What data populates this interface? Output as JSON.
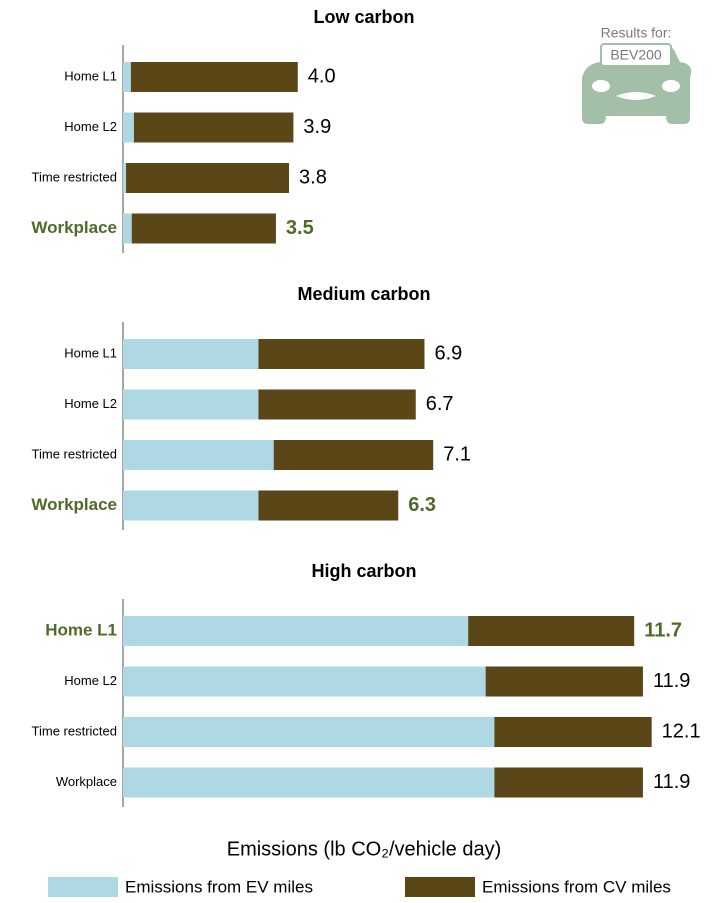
{
  "chart_data": [
    {
      "type": "bar",
      "orientation": "horizontal",
      "stacked": true,
      "title": "Low carbon",
      "categories": [
        "Home L1",
        "Home L2",
        "Time restricted",
        "Workplace"
      ],
      "series": [
        {
          "name": "Emissions from EV miles",
          "color": "#add8e4",
          "values": [
            0.18,
            0.25,
            0.07,
            0.2
          ]
        },
        {
          "name": "Emissions from CV miles",
          "color": "#5a4616",
          "values": [
            3.82,
            3.65,
            3.73,
            3.3
          ]
        }
      ],
      "totals": [
        4,
        3.9,
        3.8,
        3.5
      ],
      "value_labels": [
        "4.0",
        "3.9",
        "3.8",
        "3.5"
      ],
      "highlight": 3,
      "highlight_color": "#4e6b2a",
      "xlim": [
        0,
        13
      ]
    },
    {
      "type": "bar",
      "orientation": "horizontal",
      "stacked": true,
      "title": "Medium carbon",
      "categories": [
        "Home L1",
        "Home L2",
        "Time restricted",
        "Workplace"
      ],
      "series": [
        {
          "color": "#add8e4",
          "values": [
            3.1,
            3.1,
            3.45,
            3.1
          ]
        },
        {
          "color": "#5a4616",
          "values": [
            3.8,
            3.6,
            3.65,
            3.2
          ]
        }
      ],
      "totals": [
        6.9,
        6.7,
        7.1,
        6.3
      ],
      "highlight": 3,
      "highlight_color": "#4e6b2a",
      "xlim": [
        0,
        13
      ]
    },
    {
      "type": "bar",
      "orientation": "horizontal",
      "stacked": true,
      "title": "High carbon",
      "categories": [
        "Home L1",
        "Home L2",
        "Time restricted",
        "Workplace"
      ],
      "series": [
        {
          "color": "#add8e4",
          "values": [
            7.9,
            8.3,
            8.5,
            8.5
          ]
        },
        {
          "color": "#5a4616",
          "values": [
            3.8,
            3.6,
            3.6,
            3.4
          ]
        }
      ],
      "totals": [
        11.7,
        11.9,
        12.1,
        11.9
      ],
      "highlight": 0,
      "highlight_color": "#4e6b2a",
      "xlim": [
        0,
        13
      ],
      "xlabel": "Emissions (lb CO₂/vehicle day)"
    }
  ],
  "badge": {
    "caption": "Results for:",
    "model": "BEV200"
  }
}
